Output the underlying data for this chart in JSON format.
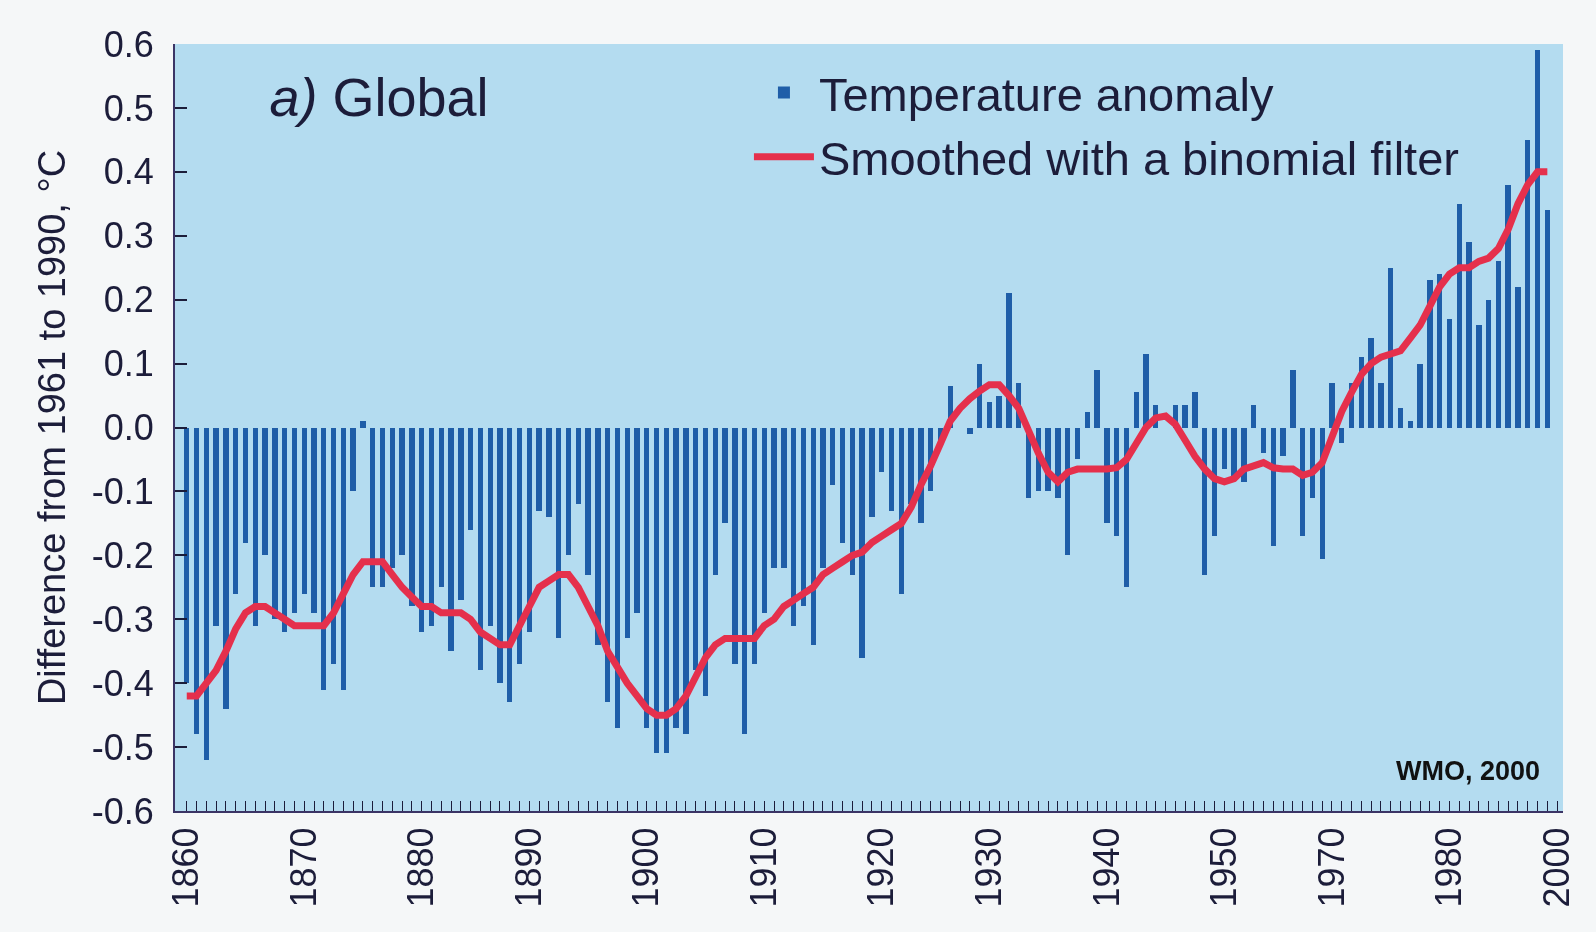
{
  "chart_data": {
    "type": "bar",
    "title": "a) Global",
    "ylabel": "Difference from 1961 to 1990, °C",
    "annotations": [
      "WMO, 2000"
    ],
    "categories": [
      "1860",
      null,
      null,
      null,
      null,
      null,
      null,
      null,
      null,
      null,
      null,
      null,
      "1870",
      null,
      null,
      null,
      null,
      null,
      null,
      null,
      null,
      null,
      null,
      null,
      "1880",
      null,
      null,
      null,
      null,
      null,
      null,
      null,
      null,
      null,
      null,
      "1890",
      null,
      null,
      null,
      null,
      null,
      null,
      null,
      null,
      null,
      null,
      null,
      "1900",
      null,
      null,
      null,
      null,
      null,
      null,
      null,
      null,
      null,
      null,
      null,
      "1910",
      null,
      null,
      null,
      null,
      null,
      null,
      null,
      null,
      null,
      null,
      null,
      "1920",
      null,
      null,
      null,
      null,
      null,
      null,
      null,
      null,
      null,
      null,
      "1930",
      null,
      null,
      null,
      null,
      null,
      null,
      null,
      null,
      null,
      null,
      null,
      "1940",
      null,
      null,
      null,
      null,
      null,
      null,
      null,
      null,
      null,
      null,
      null,
      "1950",
      null,
      null,
      null,
      null,
      null,
      null,
      null,
      null,
      null,
      null,
      "1970",
      null,
      null,
      null,
      null,
      null,
      null,
      null,
      null,
      null,
      null,
      null,
      "1980",
      null,
      null,
      null,
      null,
      null,
      null,
      null,
      null,
      null,
      null,
      "2000"
    ],
    "series": [
      {
        "name": "Temperature anomaly",
        "color": "#1f5ea8",
        "values": [
          -0.4,
          -0.48,
          -0.52,
          -0.31,
          -0.44,
          -0.26,
          -0.18,
          -0.31,
          -0.2,
          -0.3,
          -0.32,
          -0.29,
          -0.26,
          -0.29,
          -0.41,
          -0.37,
          -0.41,
          -0.1,
          0.01,
          -0.25,
          -0.25,
          -0.22,
          -0.2,
          -0.28,
          -0.32,
          -0.31,
          -0.25,
          -0.35,
          -0.27,
          -0.16,
          -0.38,
          -0.31,
          -0.4,
          -0.43,
          -0.37,
          -0.32,
          -0.13,
          -0.14,
          -0.33,
          -0.2,
          -0.12,
          -0.23,
          -0.34,
          -0.43,
          -0.47,
          -0.33,
          -0.29,
          -0.47,
          -0.51,
          -0.51,
          -0.47,
          -0.48,
          -0.38,
          -0.42,
          -0.23,
          -0.15,
          -0.37,
          -0.48,
          -0.37,
          -0.29,
          -0.22,
          -0.22,
          -0.31,
          -0.28,
          -0.34,
          -0.22,
          -0.09,
          -0.18,
          -0.23,
          -0.36,
          -0.14,
          -0.07,
          -0.13,
          -0.26,
          -0.12,
          -0.15,
          -0.1,
          -0.02,
          0.065,
          null,
          -0.01,
          0.1,
          0.04,
          0.05,
          0.21,
          0.07,
          -0.11,
          -0.1,
          -0.1,
          -0.11,
          -0.2,
          -0.05,
          0.025,
          0.09,
          -0.15,
          -0.17,
          -0.25,
          0.055,
          0.115,
          0.035,
          null,
          0.035,
          0.035,
          0.055,
          -0.23,
          -0.17,
          -0.065,
          -0.08,
          -0.085,
          0.035,
          -0.04,
          -0.185,
          -0.045,
          0.09,
          -0.17,
          -0.11,
          -0.205,
          0.07,
          -0.025,
          0.07,
          0.11,
          0.14,
          0.07,
          0.25,
          0.03,
          0.01,
          0.1,
          0.23,
          0.24,
          0.17,
          0.35,
          0.29,
          0.16,
          0.2,
          0.26,
          0.38,
          0.22,
          0.45,
          0.59,
          0.34,
          null
        ]
      },
      {
        "name": "Smoothed with a binomial filter",
        "type": "line",
        "color": "#e5304c",
        "values": [
          -0.42,
          -0.42,
          -0.4,
          -0.38,
          -0.35,
          -0.315,
          -0.29,
          -0.28,
          -0.28,
          -0.29,
          -0.3,
          -0.31,
          -0.31,
          -0.31,
          -0.31,
          -0.29,
          -0.26,
          -0.23,
          -0.21,
          -0.21,
          -0.21,
          -0.23,
          -0.25,
          -0.265,
          -0.28,
          -0.28,
          -0.29,
          -0.29,
          -0.29,
          -0.3,
          -0.32,
          -0.33,
          -0.34,
          -0.34,
          -0.31,
          -0.28,
          -0.25,
          -0.24,
          -0.23,
          -0.23,
          -0.25,
          -0.28,
          -0.31,
          -0.35,
          -0.375,
          -0.4,
          -0.42,
          -0.44,
          -0.45,
          -0.45,
          -0.44,
          -0.42,
          -0.39,
          -0.36,
          -0.34,
          -0.33,
          -0.33,
          -0.33,
          -0.33,
          -0.31,
          -0.3,
          -0.28,
          -0.27,
          -0.26,
          -0.25,
          -0.23,
          -0.22,
          -0.21,
          -0.2,
          -0.195,
          -0.18,
          -0.17,
          -0.16,
          -0.15,
          -0.125,
          -0.09,
          -0.06,
          -0.025,
          0.01,
          0.03,
          0.045,
          0.057,
          0.067,
          0.067,
          0.05,
          0.03,
          -0.005,
          -0.04,
          -0.07,
          -0.085,
          -0.07,
          -0.065,
          -0.065,
          -0.065,
          -0.065,
          -0.063,
          -0.05,
          -0.025,
          0.0,
          0.015,
          0.018,
          0.005,
          -0.02,
          -0.045,
          -0.065,
          -0.08,
          -0.085,
          -0.08,
          -0.065,
          -0.06,
          -0.055,
          -0.063,
          -0.065,
          -0.065,
          -0.075,
          -0.07,
          -0.055,
          -0.015,
          0.025,
          0.055,
          0.083,
          0.1,
          0.11,
          0.115,
          0.12,
          0.14,
          0.16,
          0.19,
          0.22,
          0.24,
          0.25,
          0.25,
          0.26,
          0.265,
          0.28,
          0.31,
          0.35,
          0.38,
          0.4,
          0.4,
          null
        ]
      }
    ],
    "ylim": [
      -0.6,
      0.6
    ],
    "yticks": [
      -0.6,
      -0.5,
      -0.4,
      -0.3,
      -0.2,
      -0.1,
      {
        "value": 0,
        "label": "0.0"
      },
      0.1,
      0.2,
      0.3,
      0.4,
      0.5,
      0.6
    ],
    "legend": "top right"
  }
}
